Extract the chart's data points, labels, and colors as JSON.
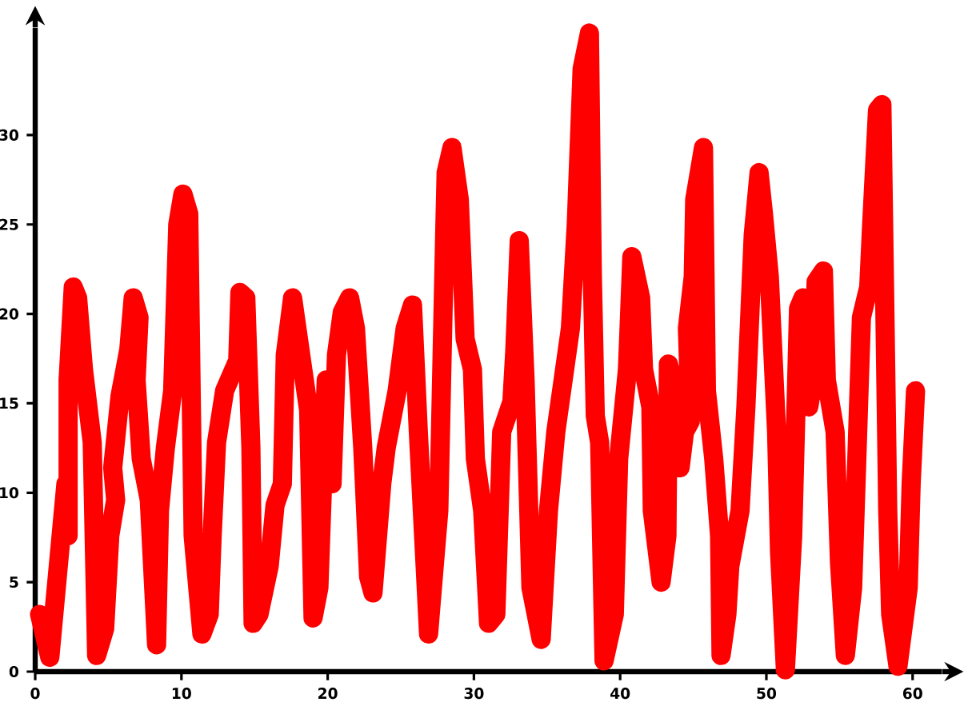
{
  "chart_data": {
    "type": "line",
    "x": [
      0.3,
      1.0,
      2.1,
      2.25,
      2.25,
      2.6,
      2.9,
      3.3,
      3.9,
      4.2,
      4.75,
      5.1,
      5.5,
      5.3,
      5.8,
      6.4,
      6.7,
      7.1,
      6.9,
      7.25,
      7.8,
      8.3,
      8.5,
      8.9,
      9.4,
      9.75,
      10.1,
      10.5,
      10.8,
      11.4,
      11.9,
      12.1,
      12.4,
      12.95,
      13.85,
      14.0,
      14.4,
      14.75,
      14.9,
      15.3,
      16.0,
      16.4,
      16.9,
      17.1,
      17.6,
      18.0,
      18.7,
      19.0,
      19.4,
      19.9,
      20.3,
      20.6,
      21.0,
      21.5,
      21.9,
      22.4,
      22.8,
      23.1,
      23.7,
      24.0,
      24.75,
      25.3,
      25.8,
      26.2,
      26.9,
      27.6,
      28.0,
      28.1,
      28.5,
      29.0,
      29.4,
      29.9,
      30.1,
      30.6,
      31.0,
      31.5,
      31.9,
      32.6,
      32.8,
      33.1,
      33.5,
      33.9,
      34.6,
      35.1,
      35.6,
      36.1,
      36.6,
      37.0,
      37.4,
      37.9,
      38.1,
      38.3,
      38.6,
      38.9,
      39.6,
      39.9,
      40.5,
      40.8,
      41.4,
      41.6,
      42.1,
      42.2,
      42.8,
      43.2,
      43.3,
      43.6,
      44.1,
      44.4,
      44.8,
      44.6,
      45.0,
      45.1,
      45.7,
      45.9,
      46.4,
      46.8,
      46.9,
      47.3,
      47.5,
      48.2,
      48.6,
      49.1,
      49.5,
      49.8,
      50.2,
      50.7,
      50.9,
      51.3,
      51.8,
      52.2,
      52.5,
      52.9,
      53.2,
      53.4,
      53.9,
      54.1,
      54.7,
      55.0,
      55.4,
      55.9,
      56.3,
      56.5,
      57.0,
      57.2,
      57.6,
      57.9,
      58.3,
      58.5,
      59.0,
      59.7,
      59.9,
      60.2
    ],
    "series": [
      {
        "color": "#ff0000",
        "values": [
          3.2,
          0.8,
          10.5,
          7.6,
          16.3,
          21.5,
          20.9,
          16.9,
          12.8,
          0.9,
          2.4,
          7.6,
          9.6,
          11.4,
          15.4,
          18.0,
          20.9,
          19.8,
          16.3,
          11.9,
          9.6,
          1.5,
          9.0,
          12.5,
          15.7,
          25.0,
          26.7,
          25.6,
          7.6,
          2.1,
          3.2,
          7.6,
          12.8,
          15.7,
          17.4,
          21.2,
          20.9,
          12.5,
          2.7,
          3.2,
          5.9,
          9.3,
          10.5,
          17.7,
          20.9,
          18.6,
          14.6,
          3.0,
          4.7,
          16.3,
          10.5,
          17.7,
          20.1,
          20.9,
          19.2,
          12.5,
          5.3,
          4.4,
          10.5,
          12.5,
          15.7,
          19.2,
          20.5,
          13.4,
          2.1,
          9.0,
          24.4,
          27.9,
          29.3,
          26.4,
          18.6,
          16.9,
          11.9,
          9.0,
          2.7,
          3.2,
          13.4,
          15.1,
          18.0,
          24.1,
          16.3,
          4.7,
          1.8,
          9.0,
          13.4,
          16.3,
          19.2,
          25.0,
          33.7,
          35.7,
          22.1,
          14.3,
          12.8,
          0.6,
          3.2,
          11.9,
          16.9,
          23.2,
          20.9,
          16.9,
          14.8,
          9.0,
          5.0,
          7.6,
          17.2,
          16.3,
          11.4,
          13.4,
          14.0,
          19.2,
          22.1,
          26.4,
          29.3,
          15.7,
          11.9,
          7.6,
          0.9,
          3.2,
          5.9,
          9.0,
          14.8,
          24.4,
          27.9,
          25.6,
          22.1,
          13.4,
          6.7,
          0.1,
          7.6,
          20.3,
          20.9,
          14.8,
          16.3,
          21.8,
          22.4,
          16.3,
          13.4,
          6.1,
          0.9,
          4.7,
          14.8,
          19.8,
          21.5,
          25.0,
          31.4,
          31.7,
          9.0,
          3.2,
          0.3,
          4.7,
          10.5,
          15.7
        ]
      }
    ],
    "xlim": [
      0,
      62
    ],
    "ylim": [
      0,
      36
    ],
    "xticks": [
      0,
      10,
      20,
      30,
      40,
      50,
      60
    ],
    "yticks": [
      0,
      5,
      10,
      15,
      20,
      25,
      30
    ]
  }
}
